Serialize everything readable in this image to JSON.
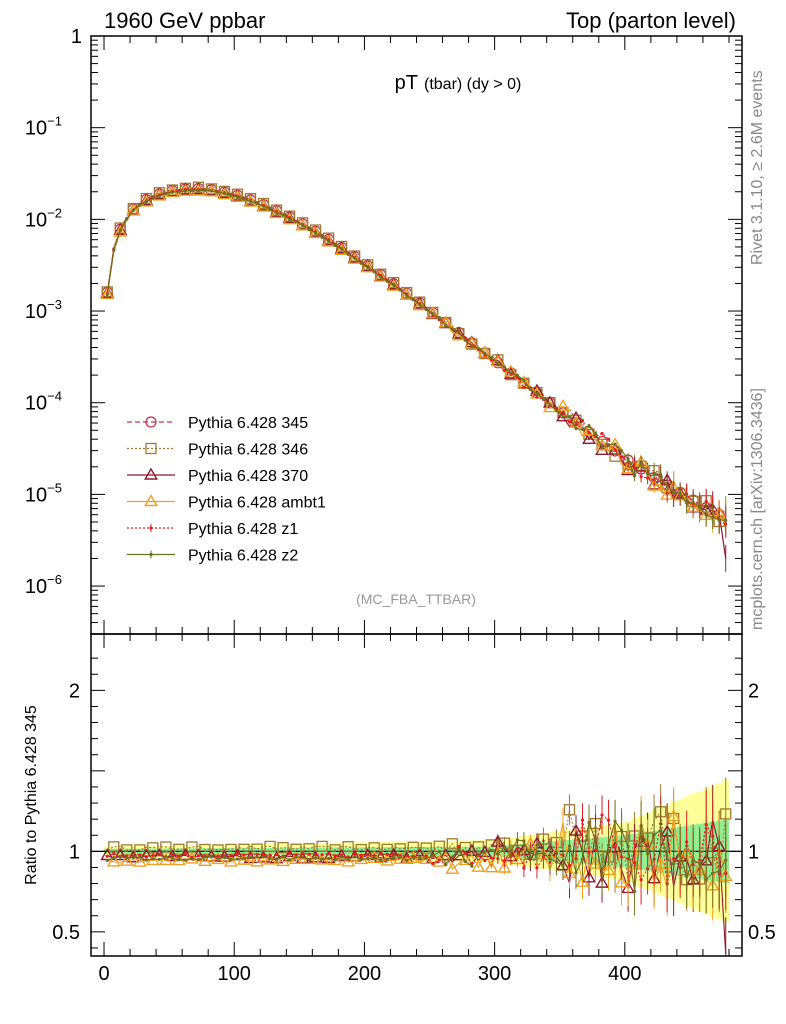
{
  "header": {
    "left": "1960 GeV ppbar",
    "right": "Top (parton level)"
  },
  "side_labels": {
    "rivet": "Rivet 3.1.10, ≥ 2.6M events",
    "mcplots": "mcplots.cern.ch [arXiv:1306.3436]"
  },
  "chart_data": [
    {
      "type": "line",
      "panel": "main",
      "title_main": "pT",
      "title_sub": "(tbar) (dy > 0)",
      "watermark": "(MC_FBA_TTBAR)",
      "yscale": "log",
      "ylim": [
        3e-07,
        1
      ],
      "xlim": [
        -10,
        490
      ],
      "y_ticks": [
        {
          "label": "1",
          "value": 1
        },
        {
          "label": "10",
          "sup": "−1",
          "value": 0.1
        },
        {
          "label": "10",
          "sup": "−2",
          "value": 0.01
        },
        {
          "label": "10",
          "sup": "−3",
          "value": 0.001
        },
        {
          "label": "10",
          "sup": "−4",
          "value": 0.0001
        },
        {
          "label": "10",
          "sup": "−5",
          "value": 1e-05
        },
        {
          "label": "10",
          "sup": "−6",
          "value": 1e-06
        }
      ],
      "legend_placement": "middle-left",
      "series": [
        {
          "name": "Pythia 6.428 345",
          "color": "#c0334d",
          "marker": "circle-open",
          "line": "dashed"
        },
        {
          "name": "Pythia 6.428 346",
          "color": "#a07830",
          "marker": "square-open",
          "line": "dotted"
        },
        {
          "name": "Pythia 6.428 370",
          "color": "#8b1a2e",
          "marker": "triangle-open",
          "line": "solid"
        },
        {
          "name": "Pythia 6.428 ambt1",
          "color": "#f0a020",
          "marker": "triangle-open",
          "line": "solid"
        },
        {
          "name": "Pythia 6.428 z1",
          "color": "#e02020",
          "marker": "dot",
          "line": "dotted"
        },
        {
          "name": "Pythia 6.428 z2",
          "color": "#707020",
          "marker": "dot",
          "line": "solid"
        }
      ],
      "shape": {
        "x_start": 2.5,
        "x_step": 5,
        "n_bins": 96,
        "points": [
          [
            2.5,
            0.0016
          ],
          [
            7.5,
            0.0048
          ],
          [
            12.5,
            0.0078
          ],
          [
            17.5,
            0.0105
          ],
          [
            22.5,
            0.013
          ],
          [
            30,
            0.0158
          ],
          [
            40,
            0.0185
          ],
          [
            50,
            0.0203
          ],
          [
            60,
            0.0214
          ],
          [
            70,
            0.0218
          ],
          [
            80,
            0.0214
          ],
          [
            90,
            0.0203
          ],
          [
            100,
            0.0188
          ],
          [
            120,
            0.015
          ],
          [
            140,
            0.0111
          ],
          [
            160,
            0.0078
          ],
          [
            180,
            0.0052
          ],
          [
            200,
            0.0033
          ],
          [
            220,
            0.0021
          ],
          [
            240,
            0.0013
          ],
          [
            260,
            0.0008
          ],
          [
            280,
            0.00048
          ],
          [
            300,
            0.00029
          ],
          [
            320,
            0.000175
          ],
          [
            340,
            0.000106
          ],
          [
            360,
            6.4e-05
          ],
          [
            380,
            4e-05
          ],
          [
            400,
            2.5e-05
          ],
          [
            420,
            1.6e-05
          ],
          [
            440,
            1.1e-05
          ],
          [
            460,
            7.5e-06
          ],
          [
            477.5,
            5.5e-06
          ]
        ],
        "last_bin_370": 2e-06
      }
    },
    {
      "type": "line",
      "panel": "ratio",
      "ylabel": "Ratio to Pythia 6.428 345",
      "ylim": [
        0.35,
        2.35
      ],
      "y_ticks": [
        {
          "label": "2",
          "value": 2
        },
        {
          "label": "1",
          "value": 1
        },
        {
          "label": "0.5",
          "value": 0.5
        }
      ],
      "xlim": [
        -10,
        490
      ],
      "x_ticks": [
        {
          "label": "0",
          "value": 0
        },
        {
          "label": "100",
          "value": 100
        },
        {
          "label": "200",
          "value": 200
        },
        {
          "label": "300",
          "value": 300
        },
        {
          "label": "400",
          "value": 400
        }
      ],
      "reference_line": 1,
      "offsets": {
        "Pythia 6.428 346": 1.02,
        "Pythia 6.428 370": 0.965,
        "Pythia 6.428 ambt1": 0.945,
        "Pythia 6.428 z1": 0.975,
        "Pythia 6.428 z2": 0.955
      },
      "band_green_halfwidth": [
        [
          0,
          0.015
        ],
        [
          300,
          0.03
        ],
        [
          400,
          0.1
        ],
        [
          480,
          0.2
        ]
      ],
      "band_yellow_halfwidth": [
        [
          0,
          0.03
        ],
        [
          300,
          0.07
        ],
        [
          400,
          0.18
        ],
        [
          480,
          0.45
        ]
      ]
    }
  ]
}
